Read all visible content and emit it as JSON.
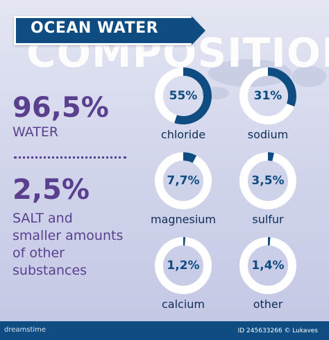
{
  "header": {
    "title": "OCEAN WATER",
    "subtitle": "COMPOSITION"
  },
  "left": {
    "water_percent": "96,5%",
    "water_label": "WATER",
    "salt_percent": "2,5%",
    "salt_lines": [
      "SALT and",
      "smaller amounts",
      "of other",
      "substances"
    ]
  },
  "components": [
    {
      "value": "55%",
      "label": "chloride",
      "fraction": 0.55
    },
    {
      "value": "31%",
      "label": "sodium",
      "fraction": 0.31
    },
    {
      "value": "7,7%",
      "label": "magnesium",
      "fraction": 0.077
    },
    {
      "value": "3,5%",
      "label": "sulfur",
      "fraction": 0.035
    },
    {
      "value": "1,2%",
      "label": "calcium",
      "fraction": 0.012
    },
    {
      "value": "1,4%",
      "label": "other",
      "fraction": 0.014
    }
  ],
  "colors": {
    "accent": "#0e4c82",
    "text_purple": "#5a3f8e",
    "ring": "#ffffff"
  },
  "footer": {
    "logo": "dreamstime",
    "id_text": "ID 245633266 © Lukaves"
  }
}
